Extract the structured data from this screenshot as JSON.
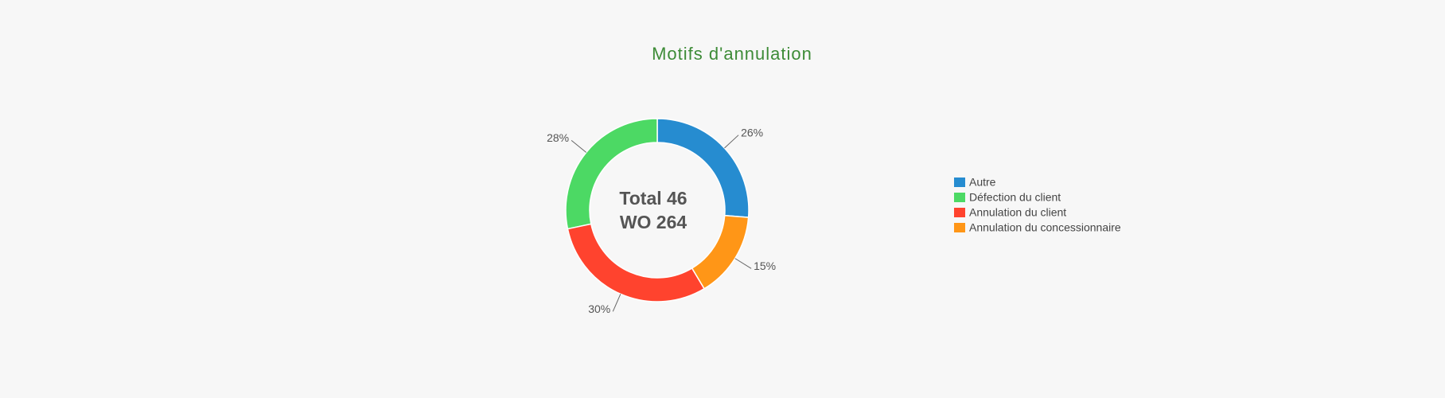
{
  "chart_data": {
    "type": "donut",
    "title": "Motifs d'annulation",
    "center_text": [
      "Total 46",
      "WO 264"
    ],
    "categories": [
      "Autre",
      "Défection du client",
      "Annulation du client",
      "Annulation du concessionnaire"
    ],
    "values": [
      26,
      28,
      30,
      15
    ],
    "value_labels": [
      "26%",
      "28%",
      "30%",
      "15%"
    ],
    "colors": [
      "#268cd0",
      "#4cd964",
      "#ff432e",
      "#ff9617"
    ]
  }
}
